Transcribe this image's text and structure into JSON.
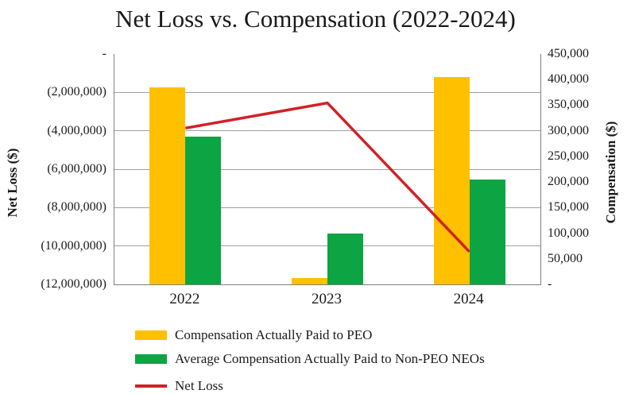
{
  "title": "Net Loss vs. Compensation (2022-2024)",
  "chart_data": {
    "type": "combo",
    "title": "Net Loss vs. Compensation (2022-2024)",
    "categories": [
      "2022",
      "2023",
      "2024"
    ],
    "series": [
      {
        "name": "Compensation Actually Paid to PEO",
        "type": "bar",
        "axis": "right",
        "color": "#FFC000",
        "values": [
          385000,
          12000,
          405000
        ]
      },
      {
        "name": "Average Compensation Actually Paid to Non-PEO NEOs",
        "type": "bar",
        "axis": "right",
        "color": "#0DA443",
        "values": [
          288000,
          100000,
          205000
        ]
      },
      {
        "name": "Net Loss",
        "type": "line",
        "axis": "left",
        "color": "#D12127",
        "values": [
          -3860000,
          -2550000,
          -10300000
        ]
      }
    ],
    "left_axis": {
      "label": "Net Loss ($)",
      "max": 0,
      "min": -12000000,
      "tick_step": 2000000,
      "tick_labels": [
        "-",
        "(2,000,000)",
        "(4,000,000)",
        "(6,000,000)",
        "(8,000,000)",
        "(10,000,000)",
        "(12,000,000)"
      ]
    },
    "right_axis": {
      "label": "Compensation ($)",
      "max": 450000,
      "min": 0,
      "tick_step": 50000,
      "tick_labels": [
        "450,000",
        "400,000",
        "350,000",
        "300,000",
        "250,000",
        "200,000",
        "150,000",
        "100,000",
        "50,000",
        "-"
      ]
    },
    "grid": "horizontal",
    "legend_position": "bottom-left"
  },
  "colors": {
    "bar_peo": "#FFC000",
    "bar_non_peo": "#0DA443",
    "net_loss_line": "#D12127",
    "gridline": "#A0A0A0",
    "axis_line": "#7F7F7F",
    "text": "#1A1A1A"
  }
}
